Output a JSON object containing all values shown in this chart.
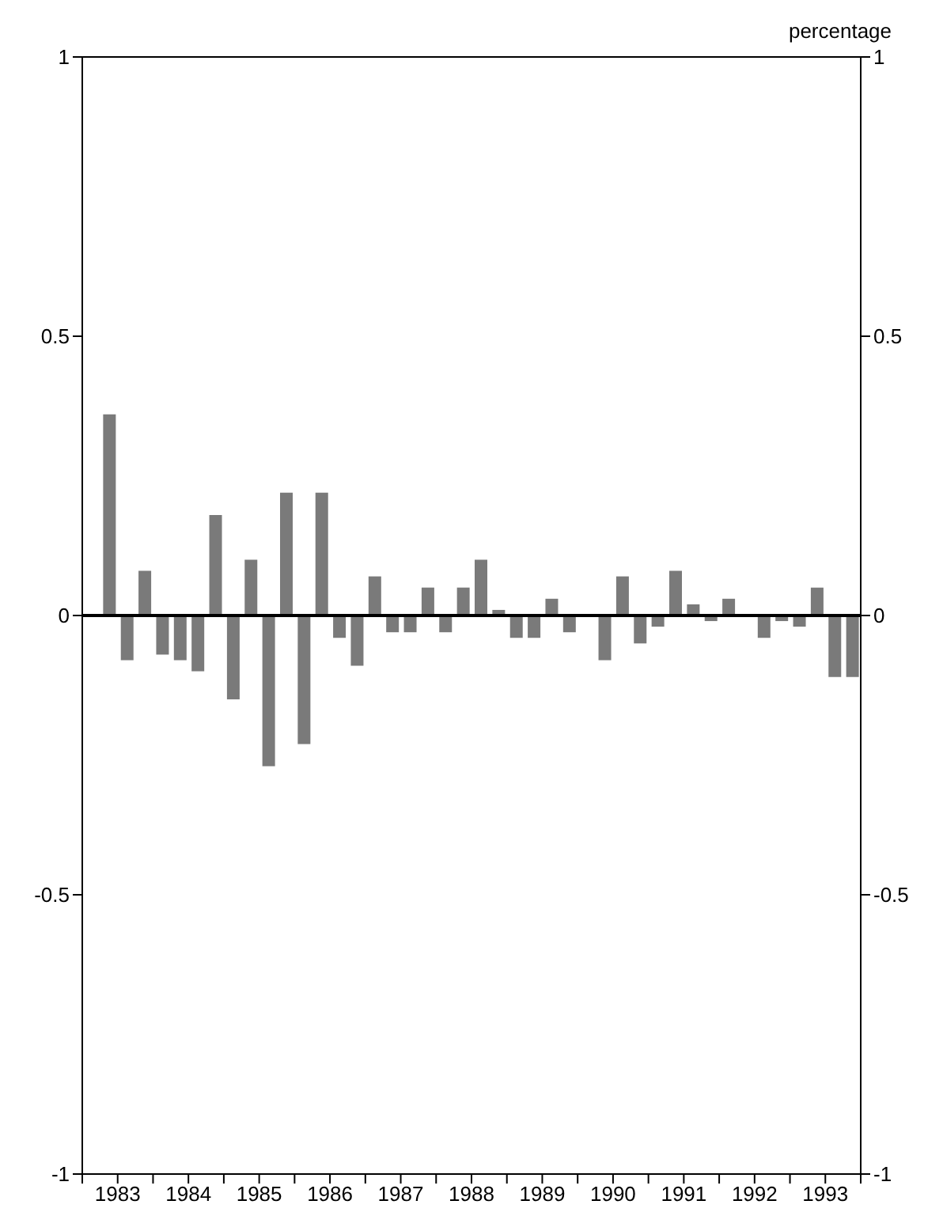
{
  "chart_data": {
    "type": "bar",
    "y2label": "percentage",
    "x": [
      1983.375,
      1983.625,
      1983.875,
      1984.125,
      1984.375,
      1984.625,
      1984.875,
      1985.125,
      1985.375,
      1985.625,
      1985.875,
      1986.125,
      1986.375,
      1986.625,
      1986.875,
      1987.125,
      1987.375,
      1987.625,
      1987.875,
      1988.125,
      1988.375,
      1988.625,
      1988.875,
      1989.125,
      1989.375,
      1989.625,
      1989.875,
      1990.125,
      1990.375,
      1990.625,
      1990.875,
      1991.125,
      1991.375,
      1991.625,
      1991.875,
      1992.125,
      1992.375,
      1992.625,
      1992.875,
      1993.125,
      1993.375,
      1993.625,
      1993.875
    ],
    "values": [
      0.36,
      -0.08,
      0.08,
      -0.07,
      -0.08,
      -0.1,
      0.18,
      -0.15,
      0.1,
      -0.27,
      0.22,
      -0.23,
      0.22,
      -0.04,
      -0.09,
      0.07,
      -0.03,
      -0.03,
      0.05,
      -0.03,
      0.05,
      0.1,
      0.01,
      -0.04,
      -0.04,
      0.03,
      -0.03,
      0.0,
      -0.08,
      0.07,
      -0.05,
      -0.02,
      0.08,
      0.02,
      -0.01,
      0.03,
      0.0,
      -0.04,
      -0.01,
      -0.02,
      0.05,
      -0.11,
      -0.11
    ],
    "color": "#7a7a7a",
    "xlim": [
      1983,
      1994
    ],
    "xticks": [
      {
        "value": 1983,
        "label": null
      },
      {
        "value": 1983.5,
        "label": "1983"
      },
      {
        "value": 1984,
        "label": null
      },
      {
        "value": 1984.5,
        "label": "1984"
      },
      {
        "value": 1985,
        "label": null
      },
      {
        "value": 1985.5,
        "label": "1985"
      },
      {
        "value": 1986,
        "label": null
      },
      {
        "value": 1986.5,
        "label": "1986"
      },
      {
        "value": 1987,
        "label": null
      },
      {
        "value": 1987.5,
        "label": "1987"
      },
      {
        "value": 1988,
        "label": null
      },
      {
        "value": 1988.5,
        "label": "1988"
      },
      {
        "value": 1989,
        "label": null
      },
      {
        "value": 1989.5,
        "label": "1989"
      },
      {
        "value": 1990,
        "label": null
      },
      {
        "value": 1990.5,
        "label": "1990"
      },
      {
        "value": 1991,
        "label": null
      },
      {
        "value": 1991.5,
        "label": "1991"
      },
      {
        "value": 1992,
        "label": null
      },
      {
        "value": 1992.5,
        "label": "1992"
      },
      {
        "value": 1993,
        "label": null
      },
      {
        "value": 1993.5,
        "label": "1993"
      },
      {
        "value": 1994,
        "label": null
      }
    ],
    "ylim": [
      -1,
      1
    ],
    "yticks": [
      -1,
      -0.5,
      0,
      0.5,
      1
    ],
    "y2lim": [
      -1,
      1
    ],
    "y2ticks": [
      -1,
      -0.5,
      0,
      0.5,
      1
    ],
    "ref_lines": [
      {
        "axis": "y",
        "value": 0,
        "color": "#000000"
      }
    ],
    "grid": false,
    "legend": false
  }
}
